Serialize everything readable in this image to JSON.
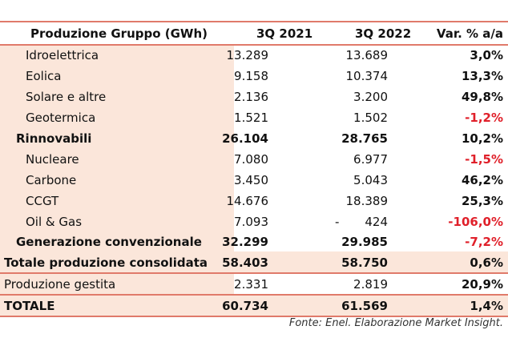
{
  "header": {
    "label": "Produzione Gruppo (GWh)",
    "col1": "3Q 2021",
    "col2": "3Q 2022",
    "col3": "Var. % a/a"
  },
  "rows": [
    {
      "label": "Idroelettrica",
      "v1": "13.289",
      "v2": "13.689",
      "var": "3,0%"
    },
    {
      "label": "Eolica",
      "v1": "9.158",
      "v2": "10.374",
      "var": "13,3%"
    },
    {
      "label": "Solare e altre",
      "v1": "2.136",
      "v2": "3.200",
      "var": "49,8%"
    },
    {
      "label": "Geotermica",
      "v1": "1.521",
      "v2": "1.502",
      "var": "-1,2%"
    },
    {
      "label": "Rinnovabili",
      "v1": "26.104",
      "v2": "28.765",
      "var": "10,2%"
    },
    {
      "label": "Nucleare",
      "v1": "7.080",
      "v2": "6.977",
      "var": "-1,5%"
    },
    {
      "label": "Carbone",
      "v1": "3.450",
      "v2": "5.043",
      "var": "46,2%"
    },
    {
      "label": "CCGT",
      "v1": "14.676",
      "v2": "18.389",
      "var": "25,3%"
    },
    {
      "label": "Oil & Gas",
      "v1": "7.093",
      "dash": "-",
      "v2": "424",
      "var": "-106,0%"
    },
    {
      "label": "Generazione convenzionale",
      "v1": "32.299",
      "v2": "29.985",
      "var": "-7,2%"
    },
    {
      "label": "Totale produzione consolidata",
      "v1": "58.403",
      "v2": "58.750",
      "var": "0,6%"
    },
    {
      "label": "Produzione gestita",
      "v1": "2.331",
      "v2": "2.819",
      "var": "20,9%"
    },
    {
      "label": "TOTALE",
      "v1": "60.734",
      "v2": "61.569",
      "var": "1,4%"
    }
  ],
  "source": "Fonte: Enel. Elaborazione Market Insight.",
  "colors": {
    "accent_line": "#e07a6a",
    "shading": "#fbe6da",
    "negative": "#e0202a"
  }
}
